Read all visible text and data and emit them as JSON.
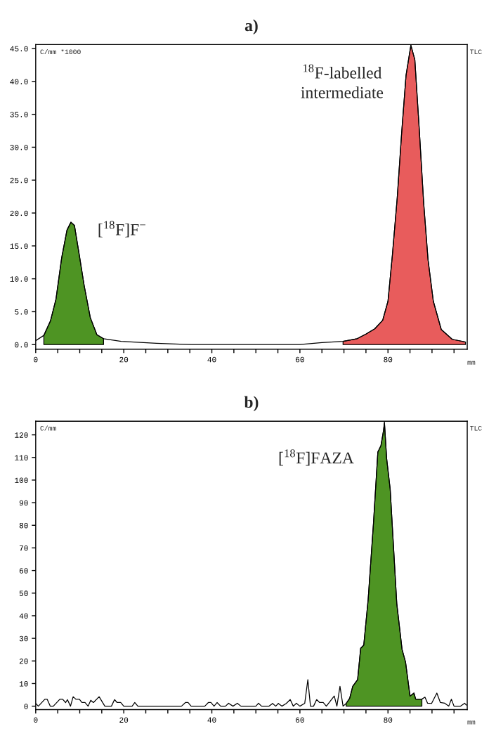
{
  "chart_data": [
    {
      "type": "line",
      "title": "a)",
      "ylabel": "C/mm *1000",
      "xlabel": "mm",
      "annotations": [
        "[$^{18}$F]F$^{−}$",
        "$^{18}$F-labelled\nintermediate",
        "TLC"
      ],
      "series": [
        {
          "color": "#000000",
          "x": [
            0,
            1.85,
            3.35,
            4.6,
            5.9,
            7.1,
            8.0,
            8.8,
            9.9,
            11.0,
            12.4,
            13.9,
            15.4,
            19.4,
            27.4,
            35.4,
            45,
            60,
            65,
            69.8,
            73.0,
            75.0,
            77.0,
            78.8,
            80.0,
            81.0,
            82.1,
            83.1,
            84.1,
            85.2,
            86.1,
            87.1,
            88.1,
            89.1,
            90.3,
            92.1,
            94.6,
            97.6
          ],
          "values": [
            0.6,
            1.4,
            3.6,
            6.9,
            13.2,
            17.4,
            18.6,
            18.1,
            13.6,
            9.0,
            4.1,
            1.5,
            0.9,
            0.5,
            0.2,
            0.0,
            0.0,
            0.0,
            0.3,
            0.5,
            0.9,
            1.6,
            2.4,
            3.7,
            6.6,
            13.6,
            22.3,
            32.1,
            40.9,
            45.5,
            43.3,
            32.8,
            21.6,
            12.9,
            6.6,
            2.3,
            0.8,
            0.4
          ]
        },
        {
          "type": "area",
          "color": "#4e9423",
          "x": [
            1.85,
            3.35,
            4.6,
            5.9,
            7.1,
            8.0,
            8.8,
            9.9,
            11.0,
            12.4,
            13.9,
            15.4
          ],
          "values": [
            1.4,
            3.6,
            6.9,
            13.2,
            17.4,
            18.6,
            18.1,
            13.6,
            9.0,
            4.1,
            1.5,
            0.9
          ]
        },
        {
          "type": "area",
          "color": "#e85c5c",
          "x": [
            69.8,
            73.0,
            75.0,
            77.0,
            78.8,
            80.0,
            81.0,
            82.1,
            83.1,
            84.1,
            85.2,
            86.1,
            87.1,
            88.1,
            89.1,
            90.3,
            92.1,
            94.6,
            97.6
          ],
          "values": [
            0.5,
            0.9,
            1.6,
            2.4,
            3.7,
            6.6,
            13.6,
            22.3,
            32.1,
            40.9,
            45.5,
            43.3,
            32.8,
            21.6,
            12.9,
            6.6,
            2.3,
            0.8,
            0.4
          ]
        }
      ],
      "xlim": [
        0,
        98
      ],
      "ylim": [
        -0.7,
        45.6
      ],
      "xticks": [
        0,
        {
          "value": 5,
          "label": null
        },
        {
          "value": 10,
          "label": null
        },
        {
          "value": 15,
          "label": null
        },
        20,
        {
          "value": 25,
          "label": null
        },
        {
          "value": 30,
          "label": null
        },
        {
          "value": 35,
          "label": null
        },
        40,
        {
          "value": 45,
          "label": null
        },
        {
          "value": 50,
          "label": null
        },
        {
          "value": 55,
          "label": null
        },
        60,
        {
          "value": 65,
          "label": null
        },
        {
          "value": 70,
          "label": null
        },
        {
          "value": 75,
          "label": null
        },
        80,
        {
          "value": 85,
          "label": null
        },
        {
          "value": 90,
          "label": null
        },
        {
          "value": 95,
          "label": null
        }
      ],
      "yticks": [
        {
          "value": 0,
          "label": "0.0"
        },
        {
          "value": 5,
          "label": "5.0"
        },
        {
          "value": 10,
          "label": "10.0"
        },
        {
          "value": 15,
          "label": "15.0"
        },
        {
          "value": 20,
          "label": "20.0"
        },
        {
          "value": 25,
          "label": "25.0"
        },
        {
          "value": 30,
          "label": "30.0"
        },
        {
          "value": 35,
          "label": "35.0"
        },
        {
          "value": 40,
          "label": "40.0"
        },
        {
          "value": 45,
          "label": "45.0"
        }
      ],
      "grid": false,
      "marker": "none",
      "line_style": "solid"
    },
    {
      "type": "line",
      "title": "b)",
      "ylabel": "C/mm",
      "xlabel": "mm",
      "annotations": [
        "[$^{18}$F]FAZA",
        "TLC"
      ],
      "series": [
        {
          "color": "#000000",
          "x": [
            0,
            0.6,
            2.1,
            2.6,
            3.3,
            4.0,
            5.5,
            6.1,
            6.8,
            7.2,
            7.9,
            8.5,
            9.1,
            9.9,
            10.5,
            11.2,
            11.9,
            12.5,
            13.1,
            14.4,
            15.7,
            17.2,
            17.9,
            18.5,
            19.3,
            20.0,
            21.9,
            22.5,
            23.2,
            33.1,
            34.0,
            34.6,
            35.3,
            38.4,
            39.2,
            39.8,
            40.5,
            41.2,
            42.0,
            43.1,
            43.8,
            44.8,
            45.8,
            46.6,
            50.0,
            50.6,
            51.3,
            53.0,
            53.8,
            54.5,
            55.1,
            55.9,
            56.9,
            57.8,
            58.5,
            59.2,
            60.0,
            61.1,
            61.8,
            62.4,
            63.1,
            63.8,
            64.5,
            65.3,
            66.0,
            67.8,
            68.4,
            69.1,
            69.8,
            70.5,
            71.3,
            72.0,
            73.1,
            73.8,
            74.5,
            75.5,
            76.7,
            77.7,
            78.4,
            79.0,
            79.2,
            79.7,
            80.5,
            82.0,
            83.2,
            84.0,
            85.0,
            85.9,
            86.3,
            87.7,
            88.4,
            89.0,
            89.9,
            91.1,
            91.9,
            92.9,
            93.8,
            94.4,
            95.0,
            96.5,
            97.4,
            97.8
          ],
          "values": [
            1.2,
            0,
            3.1,
            3.1,
            0,
            0,
            3.1,
            3.1,
            1.6,
            2.9,
            0,
            4.2,
            3.1,
            3.1,
            1.6,
            1.6,
            0,
            2.6,
            1.6,
            4.2,
            0,
            0,
            2.9,
            1.6,
            1.6,
            0,
            0,
            1.6,
            0,
            0,
            1.6,
            1.6,
            0,
            0,
            1.6,
            1.6,
            0,
            1.6,
            0,
            0,
            1.3,
            0,
            1.3,
            0,
            0,
            1.3,
            0,
            0,
            1.2,
            0,
            1.2,
            0,
            1.2,
            2.9,
            0,
            1.3,
            0,
            1.3,
            11.7,
            0,
            0,
            2.9,
            1.6,
            1.6,
            0,
            4.5,
            0,
            8.8,
            0,
            1.2,
            3.5,
            8.8,
            11.7,
            25.6,
            27.0,
            47.2,
            80.7,
            112.4,
            115.2,
            122.0,
            125.5,
            109.5,
            96.1,
            45.4,
            25.1,
            19.4,
            4.5,
            5.8,
            3.1,
            3.1,
            4.0,
            1.3,
            1.2,
            5.8,
            1.6,
            1.3,
            0,
            3.1,
            0,
            0,
            1.3,
            0.5
          ]
        },
        {
          "type": "area",
          "color": "#4e9423",
          "x": [
            70.5,
            71.3,
            72.0,
            73.1,
            73.8,
            74.5,
            75.5,
            76.7,
            77.7,
            78.4,
            79.0,
            79.2,
            79.7,
            80.5,
            82.0,
            83.2,
            84.0,
            85.0,
            85.9,
            86.3,
            87.7
          ],
          "values": [
            1.2,
            3.5,
            8.8,
            11.7,
            25.6,
            27.0,
            47.2,
            80.7,
            112.4,
            115.2,
            122.0,
            125.5,
            109.5,
            96.1,
            45.4,
            25.1,
            19.4,
            4.5,
            5.8,
            3.1,
            3.1
          ]
        }
      ],
      "xlim": [
        0,
        98
      ],
      "ylim": [
        -1.5,
        126
      ],
      "xticks": [
        0,
        {
          "value": 5,
          "label": null
        },
        {
          "value": 10,
          "label": null
        },
        {
          "value": 15,
          "label": null
        },
        20,
        {
          "value": 25,
          "label": null
        },
        {
          "value": 30,
          "label": null
        },
        {
          "value": 35,
          "label": null
        },
        40,
        {
          "value": 45,
          "label": null
        },
        {
          "value": 50,
          "label": null
        },
        {
          "value": 55,
          "label": null
        },
        60,
        {
          "value": 65,
          "label": null
        },
        {
          "value": 70,
          "label": null
        },
        {
          "value": 75,
          "label": null
        },
        80,
        {
          "value": 85,
          "label": null
        },
        {
          "value": 90,
          "label": null
        },
        {
          "value": 95,
          "label": null
        }
      ],
      "yticks": [
        0,
        10,
        20,
        30,
        40,
        50,
        60,
        70,
        80,
        90,
        100,
        110,
        120
      ],
      "grid": false,
      "marker": "none",
      "line_style": "solid"
    }
  ]
}
